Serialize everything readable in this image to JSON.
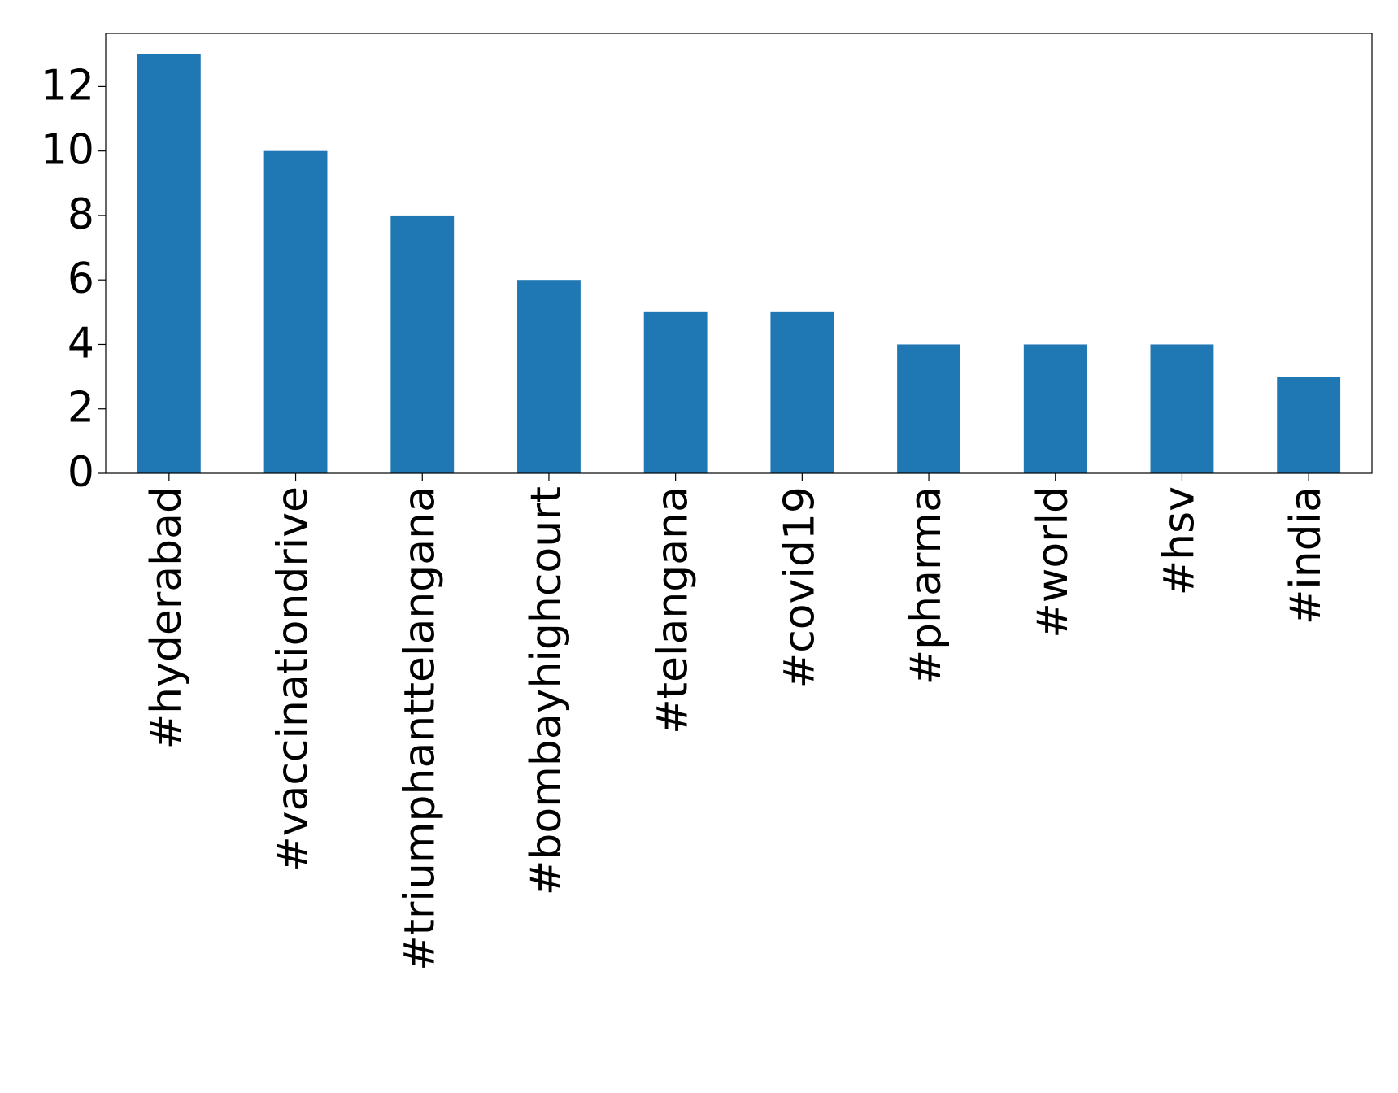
{
  "chart_data": {
    "type": "bar",
    "categories": [
      "#hyderabad",
      "#vaccinationdrive",
      "#triumphanttelangana",
      "#bombayhighcourt",
      "#telangana",
      "#covid19",
      "#pharma",
      "#world",
      "#hsv",
      "#india"
    ],
    "values": [
      13,
      10,
      8,
      6,
      5,
      5,
      4,
      4,
      4,
      3
    ],
    "color": "#1f77b4",
    "ylim": [
      0,
      13.65
    ],
    "yticks": [
      0,
      2,
      4,
      6,
      8,
      10,
      12
    ],
    "grid": false
  }
}
